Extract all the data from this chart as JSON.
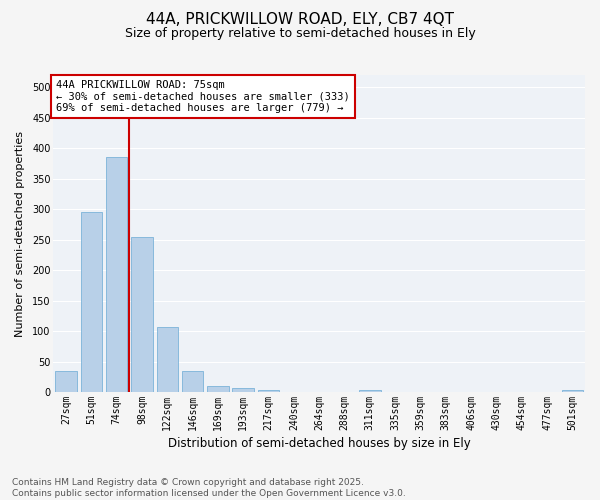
{
  "title": "44A, PRICKWILLOW ROAD, ELY, CB7 4QT",
  "subtitle": "Size of property relative to semi-detached houses in Ely",
  "xlabel": "Distribution of semi-detached houses by size in Ely",
  "ylabel": "Number of semi-detached properties",
  "categories": [
    "27sqm",
    "51sqm",
    "74sqm",
    "98sqm",
    "122sqm",
    "146sqm",
    "169sqm",
    "193sqm",
    "217sqm",
    "240sqm",
    "264sqm",
    "288sqm",
    "311sqm",
    "335sqm",
    "359sqm",
    "383sqm",
    "406sqm",
    "430sqm",
    "454sqm",
    "477sqm",
    "501sqm"
  ],
  "values": [
    35,
    295,
    385,
    255,
    107,
    35,
    10,
    7,
    4,
    0,
    0,
    0,
    4,
    0,
    0,
    0,
    0,
    0,
    0,
    0,
    4
  ],
  "bar_color": "#b8d0e8",
  "bar_edge_color": "#6aaad4",
  "vline_index": 2,
  "vline_color": "#cc0000",
  "annotation_text": "44A PRICKWILLOW ROAD: 75sqm\n← 30% of semi-detached houses are smaller (333)\n69% of semi-detached houses are larger (779) →",
  "annotation_box_color": "#cc0000",
  "ylim": [
    0,
    520
  ],
  "yticks": [
    0,
    50,
    100,
    150,
    200,
    250,
    300,
    350,
    400,
    450,
    500
  ],
  "plot_bg_color": "#eef2f7",
  "fig_bg_color": "#f5f5f5",
  "grid_color": "#ffffff",
  "footer_line1": "Contains HM Land Registry data © Crown copyright and database right 2025.",
  "footer_line2": "Contains public sector information licensed under the Open Government Licence v3.0.",
  "title_fontsize": 11,
  "subtitle_fontsize": 9,
  "xlabel_fontsize": 8.5,
  "ylabel_fontsize": 8,
  "tick_fontsize": 7,
  "annotation_fontsize": 7.5,
  "footer_fontsize": 6.5
}
